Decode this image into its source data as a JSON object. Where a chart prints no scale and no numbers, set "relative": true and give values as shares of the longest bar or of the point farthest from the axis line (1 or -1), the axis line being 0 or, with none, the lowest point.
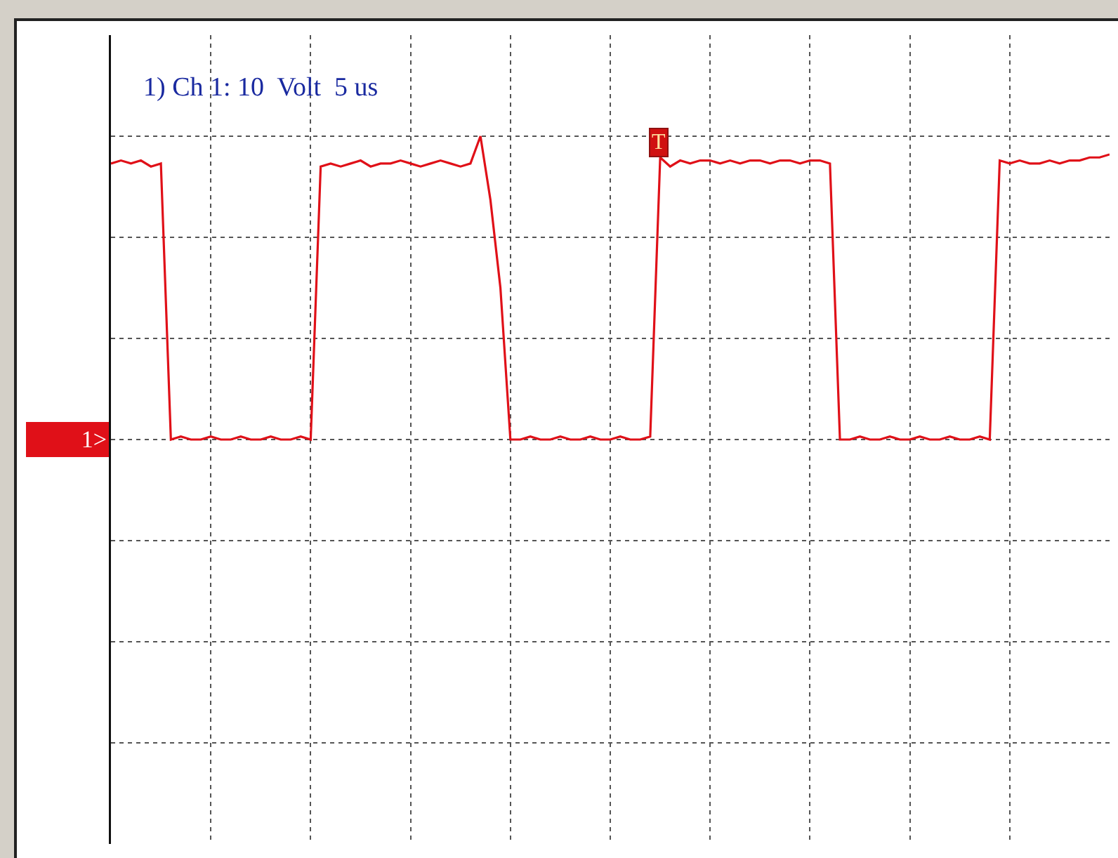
{
  "chart_data": {
    "type": "line",
    "relative": true,
    "grid": true,
    "annotations": [
      {
        "text": "1) Ch 1: 10  Volt  5 us"
      },
      "1>",
      "T"
    ],
    "categories": [
      null,
      null,
      null,
      null,
      null,
      null,
      null,
      null,
      null,
      null,
      null,
      null,
      null,
      null,
      null,
      null,
      null,
      null,
      null,
      null,
      null,
      null,
      null,
      null,
      null,
      null,
      null,
      null,
      null,
      null,
      null,
      null,
      null,
      null,
      null,
      null,
      null,
      null,
      null,
      null,
      null,
      null,
      null,
      null,
      null,
      null,
      null,
      null,
      null,
      null,
      null,
      null,
      null,
      null,
      null,
      null,
      null,
      null,
      null,
      null,
      null,
      null,
      null,
      null,
      null,
      null,
      null,
      null,
      null,
      null,
      null,
      null,
      null,
      null,
      null,
      null,
      null,
      null,
      null,
      null,
      null,
      null,
      null,
      null,
      null,
      null,
      null,
      null,
      null,
      null,
      null,
      null,
      null,
      null,
      null,
      null,
      null,
      null,
      null,
      null,
      null
    ],
    "series": [
      {
        "color": "#e01018",
        "values": [
          0.91,
          0.92,
          0.91,
          0.92,
          0.9,
          0.91,
          0,
          0.01,
          0,
          0,
          0.01,
          0,
          0,
          0.01,
          0,
          0,
          0.01,
          0,
          0,
          0.01,
          0,
          0.9,
          0.91,
          0.9,
          0.91,
          0.92,
          0.9,
          0.91,
          0.91,
          0.92,
          0.91,
          0.9,
          0.91,
          0.92,
          0.91,
          0.9,
          0.91,
          1,
          0.79,
          0.5,
          0,
          0,
          0.01,
          0,
          0,
          0.01,
          0,
          0,
          0.01,
          0,
          0,
          0.01,
          0,
          0,
          0.01,
          0.93,
          0.9,
          0.92,
          0.91,
          0.92,
          0.92,
          0.91,
          0.92,
          0.91,
          0.92,
          0.92,
          0.91,
          0.92,
          0.92,
          0.91,
          0.92,
          0.92,
          0.91,
          0,
          0,
          0.01,
          0,
          0,
          0.01,
          0,
          0,
          0.01,
          0,
          0,
          0.01,
          0,
          0,
          0.01,
          0,
          0.92,
          0.91,
          0.92,
          0.91,
          0.91,
          0.92,
          0.91,
          0.92,
          0.92,
          0.93,
          0.93,
          0.94
        ]
      }
    ]
  }
}
